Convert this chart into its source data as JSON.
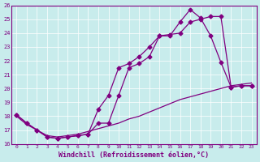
{
  "xlabel": "Windchill (Refroidissement éolien,°C)",
  "background_color": "#c8ecec",
  "line_color": "#800080",
  "xlim": [
    -0.5,
    23.5
  ],
  "ylim": [
    16,
    26
  ],
  "xticks": [
    0,
    1,
    2,
    3,
    4,
    5,
    6,
    7,
    8,
    9,
    10,
    11,
    12,
    13,
    14,
    15,
    16,
    17,
    18,
    19,
    20,
    21,
    22,
    23
  ],
  "yticks": [
    16,
    17,
    18,
    19,
    20,
    21,
    22,
    23,
    24,
    25,
    26
  ],
  "line1_x": [
    0,
    1,
    2,
    3,
    4,
    5,
    6,
    7,
    8,
    9,
    10,
    11,
    12,
    13,
    14,
    15,
    16,
    17,
    18,
    19,
    20,
    21,
    22,
    23
  ],
  "line1_y": [
    18.1,
    17.5,
    17.0,
    16.5,
    16.4,
    16.5,
    16.6,
    16.7,
    18.5,
    19.5,
    21.5,
    21.8,
    22.3,
    23.0,
    23.8,
    23.8,
    24.8,
    25.7,
    25.1,
    23.8,
    21.9,
    20.1,
    20.2,
    20.2
  ],
  "line2_x": [
    0,
    1,
    2,
    3,
    4,
    5,
    6,
    7,
    8,
    9,
    10,
    11,
    12,
    13,
    14,
    15,
    16,
    17,
    18,
    19,
    20,
    21,
    22,
    23
  ],
  "line2_y": [
    18.1,
    17.5,
    17.0,
    16.5,
    16.4,
    16.5,
    16.6,
    16.7,
    17.5,
    17.5,
    19.5,
    21.5,
    21.8,
    22.3,
    23.8,
    23.9,
    24.0,
    24.8,
    25.0,
    25.2,
    25.2,
    20.1,
    20.2,
    20.2
  ],
  "line3_x": [
    0,
    1,
    2,
    3,
    4,
    5,
    6,
    7,
    8,
    9,
    10,
    11,
    12,
    13,
    14,
    15,
    16,
    17,
    18,
    19,
    20,
    21,
    22,
    23
  ],
  "line3_y": [
    18.0,
    17.4,
    17.0,
    16.6,
    16.5,
    16.6,
    16.7,
    16.9,
    17.1,
    17.3,
    17.5,
    17.8,
    18.0,
    18.3,
    18.6,
    18.9,
    19.2,
    19.4,
    19.6,
    19.8,
    20.0,
    20.2,
    20.3,
    20.4
  ]
}
